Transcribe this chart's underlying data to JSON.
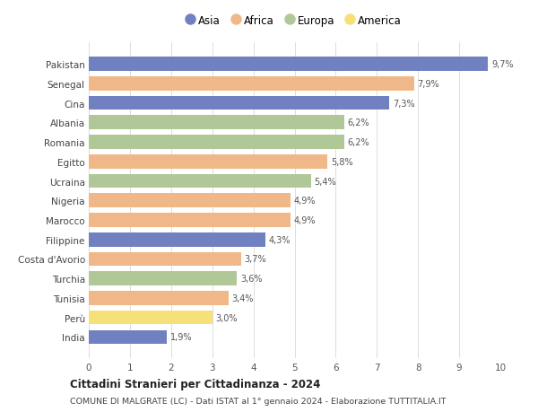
{
  "categories": [
    "Pakistan",
    "Senegal",
    "Cina",
    "Albania",
    "Romania",
    "Egitto",
    "Ucraina",
    "Nigeria",
    "Marocco",
    "Filippine",
    "Costa d'Avorio",
    "Turchia",
    "Tunisia",
    "Perù",
    "India"
  ],
  "values": [
    9.7,
    7.9,
    7.3,
    6.2,
    6.2,
    5.8,
    5.4,
    4.9,
    4.9,
    4.3,
    3.7,
    3.6,
    3.4,
    3.0,
    1.9
  ],
  "labels": [
    "9,7%",
    "7,9%",
    "7,3%",
    "6,2%",
    "6,2%",
    "5,8%",
    "5,4%",
    "4,9%",
    "4,9%",
    "4,3%",
    "3,7%",
    "3,6%",
    "3,4%",
    "3,0%",
    "1,9%"
  ],
  "continents": [
    "Asia",
    "Africa",
    "Asia",
    "Europa",
    "Europa",
    "Africa",
    "Europa",
    "Africa",
    "Africa",
    "Asia",
    "Africa",
    "Europa",
    "Africa",
    "America",
    "Asia"
  ],
  "colors": {
    "Asia": "#7080c0",
    "Africa": "#f0b888",
    "Europa": "#b0c898",
    "America": "#f5e07a"
  },
  "legend_order": [
    "Asia",
    "Africa",
    "Europa",
    "America"
  ],
  "xlim": [
    0,
    10
  ],
  "xticks": [
    0,
    1,
    2,
    3,
    4,
    5,
    6,
    7,
    8,
    9,
    10
  ],
  "title1": "Cittadini Stranieri per Cittadinanza - 2024",
  "title2": "COMUNE DI MALGRATE (LC) - Dati ISTAT al 1° gennaio 2024 - Elaborazione TUTTITALIA.IT",
  "bg_color": "#ffffff",
  "grid_color": "#dddddd",
  "bar_height": 0.72
}
